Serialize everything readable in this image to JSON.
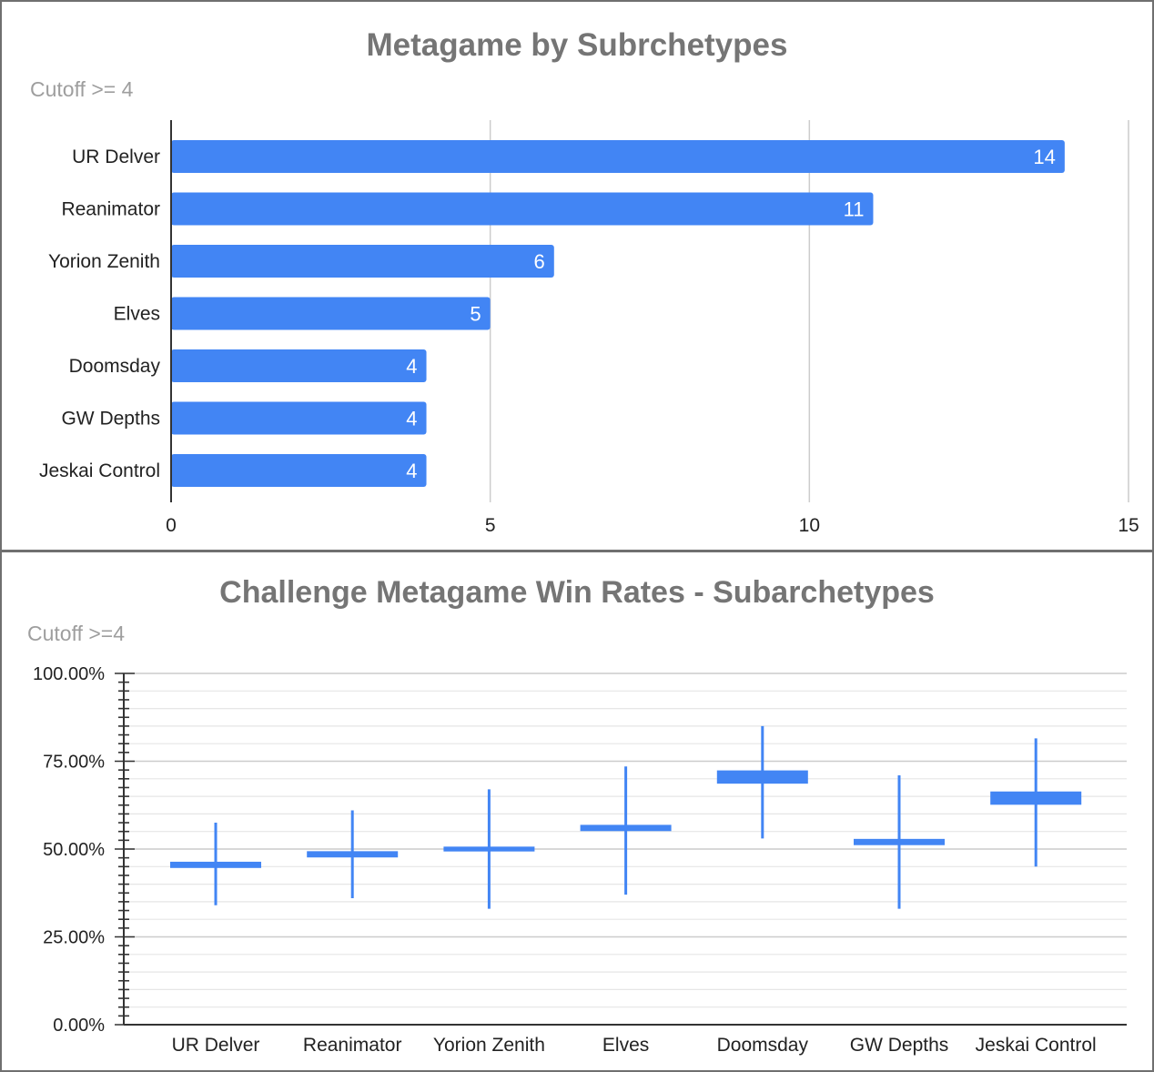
{
  "chart_data": [
    {
      "type": "bar",
      "orientation": "horizontal",
      "title": "Metagame by Subrchetypes",
      "subtitle": "Cutoff >= 4",
      "categories": [
        "UR Delver",
        "Reanimator",
        "Yorion Zenith",
        "Elves",
        "Doomsday",
        "GW Depths",
        "Jeskai Control"
      ],
      "values": [
        14,
        11,
        6,
        5,
        4,
        4,
        4
      ],
      "data_labels": [
        "14",
        "11",
        "6",
        "5",
        "4",
        "4",
        "4"
      ],
      "xlim": [
        0,
        15
      ],
      "x_ticks": [
        "0",
        "5",
        "10",
        "15"
      ],
      "x_tick_values": [
        0,
        5,
        10,
        15
      ],
      "grid": "vertical",
      "bar_color": "#4285f4"
    },
    {
      "type": "candlestick",
      "title": "Challenge Metagame Win Rates - Subarchetypes",
      "subtitle": "Cutoff >=4",
      "categories": [
        "UR Delver",
        "Reanimator",
        "Yorion Zenith",
        "Elves",
        "Doomsday",
        "GW Depths",
        "Jeskai Control"
      ],
      "low": [
        34.0,
        36.0,
        33.0,
        37.0,
        53.0,
        33.0,
        45.0
      ],
      "open": [
        46.0,
        49.0,
        50.3,
        56.5,
        72.0,
        52.5,
        66.0
      ],
      "close": [
        45.0,
        48.0,
        49.7,
        55.5,
        69.0,
        51.5,
        63.0
      ],
      "high": [
        57.5,
        61.0,
        67.0,
        73.5,
        85.0,
        71.0,
        81.5
      ],
      "ylim": [
        0,
        100
      ],
      "y_ticks": [
        "0.00%",
        "25.00%",
        "50.00%",
        "75.00%",
        "100.00%"
      ],
      "y_tick_values": [
        0,
        25,
        50,
        75,
        100
      ],
      "grid": "horizontal",
      "color": "#4285f4"
    }
  ]
}
